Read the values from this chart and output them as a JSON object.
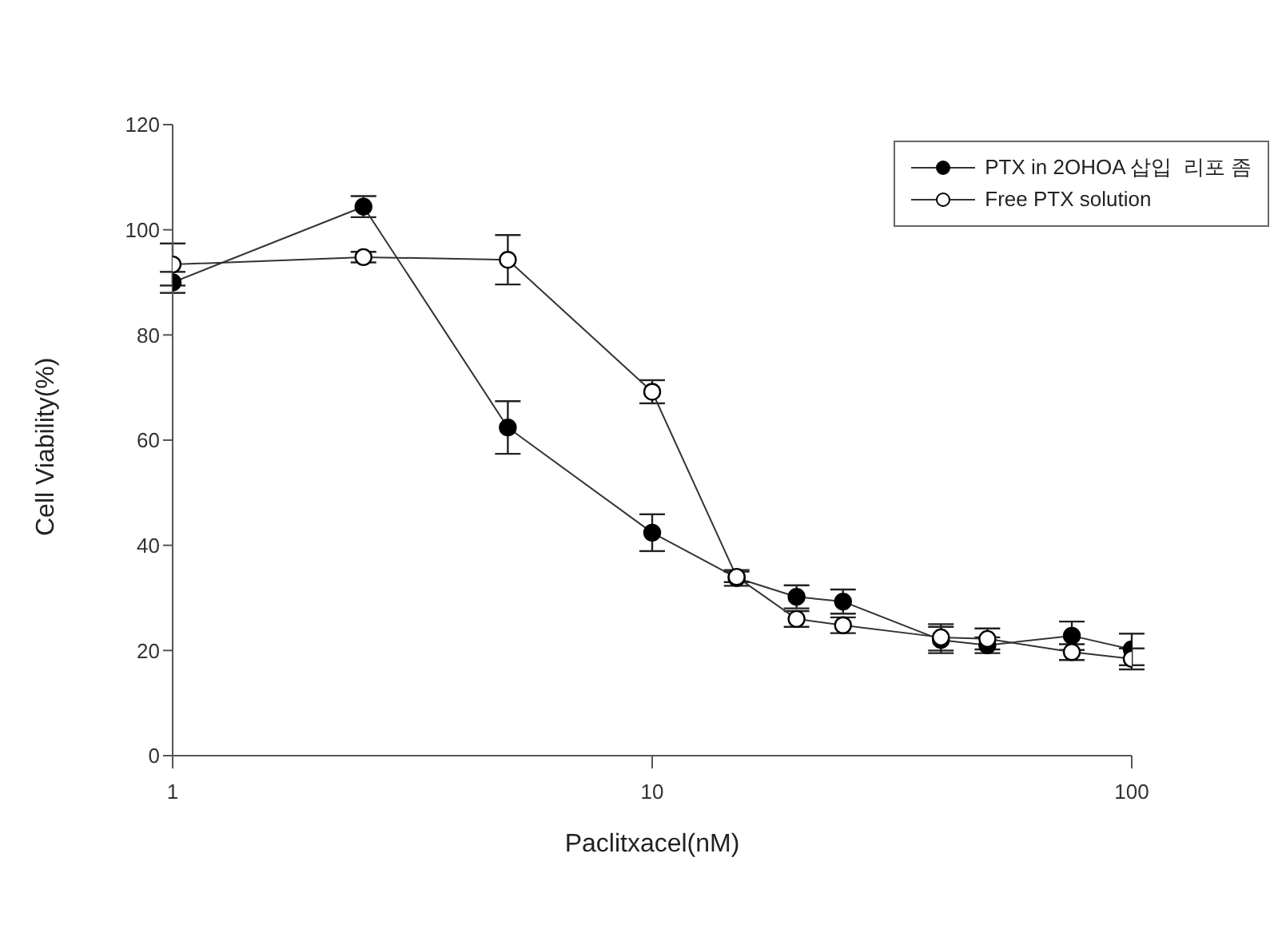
{
  "chart_data": {
    "type": "line",
    "xlabel": "Paclitxacel(nM)",
    "ylabel": "Cell Viability(%)",
    "x": [
      1,
      2.5,
      5,
      10,
      15,
      20,
      25,
      40,
      50,
      75,
      100
    ],
    "series": [
      {
        "name": "PTX in 2OHOA 삽입  리포 좀",
        "color": "#000000",
        "values": [
          90,
          104.4,
          62.4,
          42.4,
          33.8,
          30.2,
          29.3,
          22,
          21,
          22.8,
          20.2
        ],
        "errors": [
          2,
          2,
          5,
          3.5,
          1.5,
          2.2,
          2.3,
          2.5,
          1.5,
          2.7,
          3
        ]
      },
      {
        "name": "Free PTX solution",
        "color": "#ffffff",
        "values": [
          93.4,
          94.8,
          94.3,
          69.2,
          34,
          26,
          24.8,
          22.5,
          22.2,
          19.7,
          18.4
        ],
        "errors": [
          4,
          1,
          4.7,
          2.2,
          1,
          1.5,
          1.5,
          2.5,
          2,
          1.5,
          2
        ]
      }
    ],
    "log": "x",
    "xlim": [
      1,
      100
    ],
    "xticks": [
      1,
      10,
      100
    ],
    "ylim": [
      0,
      120
    ],
    "yticks": [
      0,
      20,
      40,
      60,
      80,
      100,
      120
    ],
    "grid": false,
    "legend": "top right",
    "marker": "circle",
    "line_style": "solid"
  }
}
